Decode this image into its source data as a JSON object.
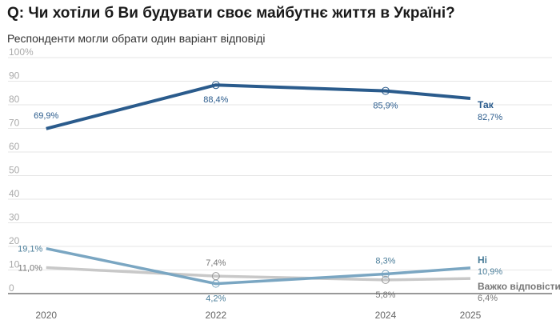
{
  "title": "Q: Чи хотіли б Ви будувати своє майбутнє життя в Україні?",
  "subtitle": "Респонденти могли обрати один варіант відповіді",
  "chart_data": {
    "type": "line",
    "title": "Q: Чи хотіли б Ви будувати своє майбутнє життя в Україні?",
    "subtitle": "Респонденти могли обрати один варіант відповіді",
    "x": [
      2020,
      2022,
      2024,
      2025
    ],
    "x_tick_labels": [
      "2020",
      "2022",
      "2024",
      "2025"
    ],
    "ylim": [
      0,
      100
    ],
    "y_ticks": [
      0,
      10,
      20,
      30,
      40,
      50,
      60,
      70,
      80,
      90,
      100
    ],
    "y_tick_labels": [
      "0",
      "10",
      "20",
      "30",
      "40",
      "50",
      "60",
      "70",
      "80",
      "90",
      "100%"
    ],
    "grid": true,
    "series": [
      {
        "name": "Так",
        "color": "#2a5b8c",
        "values": [
          69.9,
          88.4,
          85.9,
          82.7
        ],
        "labels": [
          "69,9%",
          "88,4%",
          "85,9%",
          "82,7%"
        ]
      },
      {
        "name": "Ні",
        "color": "#7aa6c2",
        "values": [
          19.1,
          4.2,
          8.3,
          10.9
        ],
        "labels": [
          "19,1%",
          "4,2%",
          "8,3%",
          "10,9%"
        ]
      },
      {
        "name": "Важко відповісти",
        "color": "#c8c8c8",
        "values": [
          11.0,
          7.4,
          5.8,
          6.4
        ],
        "labels": [
          "11,0%",
          "7,4%",
          "5,8%",
          "6,4%"
        ]
      }
    ]
  }
}
